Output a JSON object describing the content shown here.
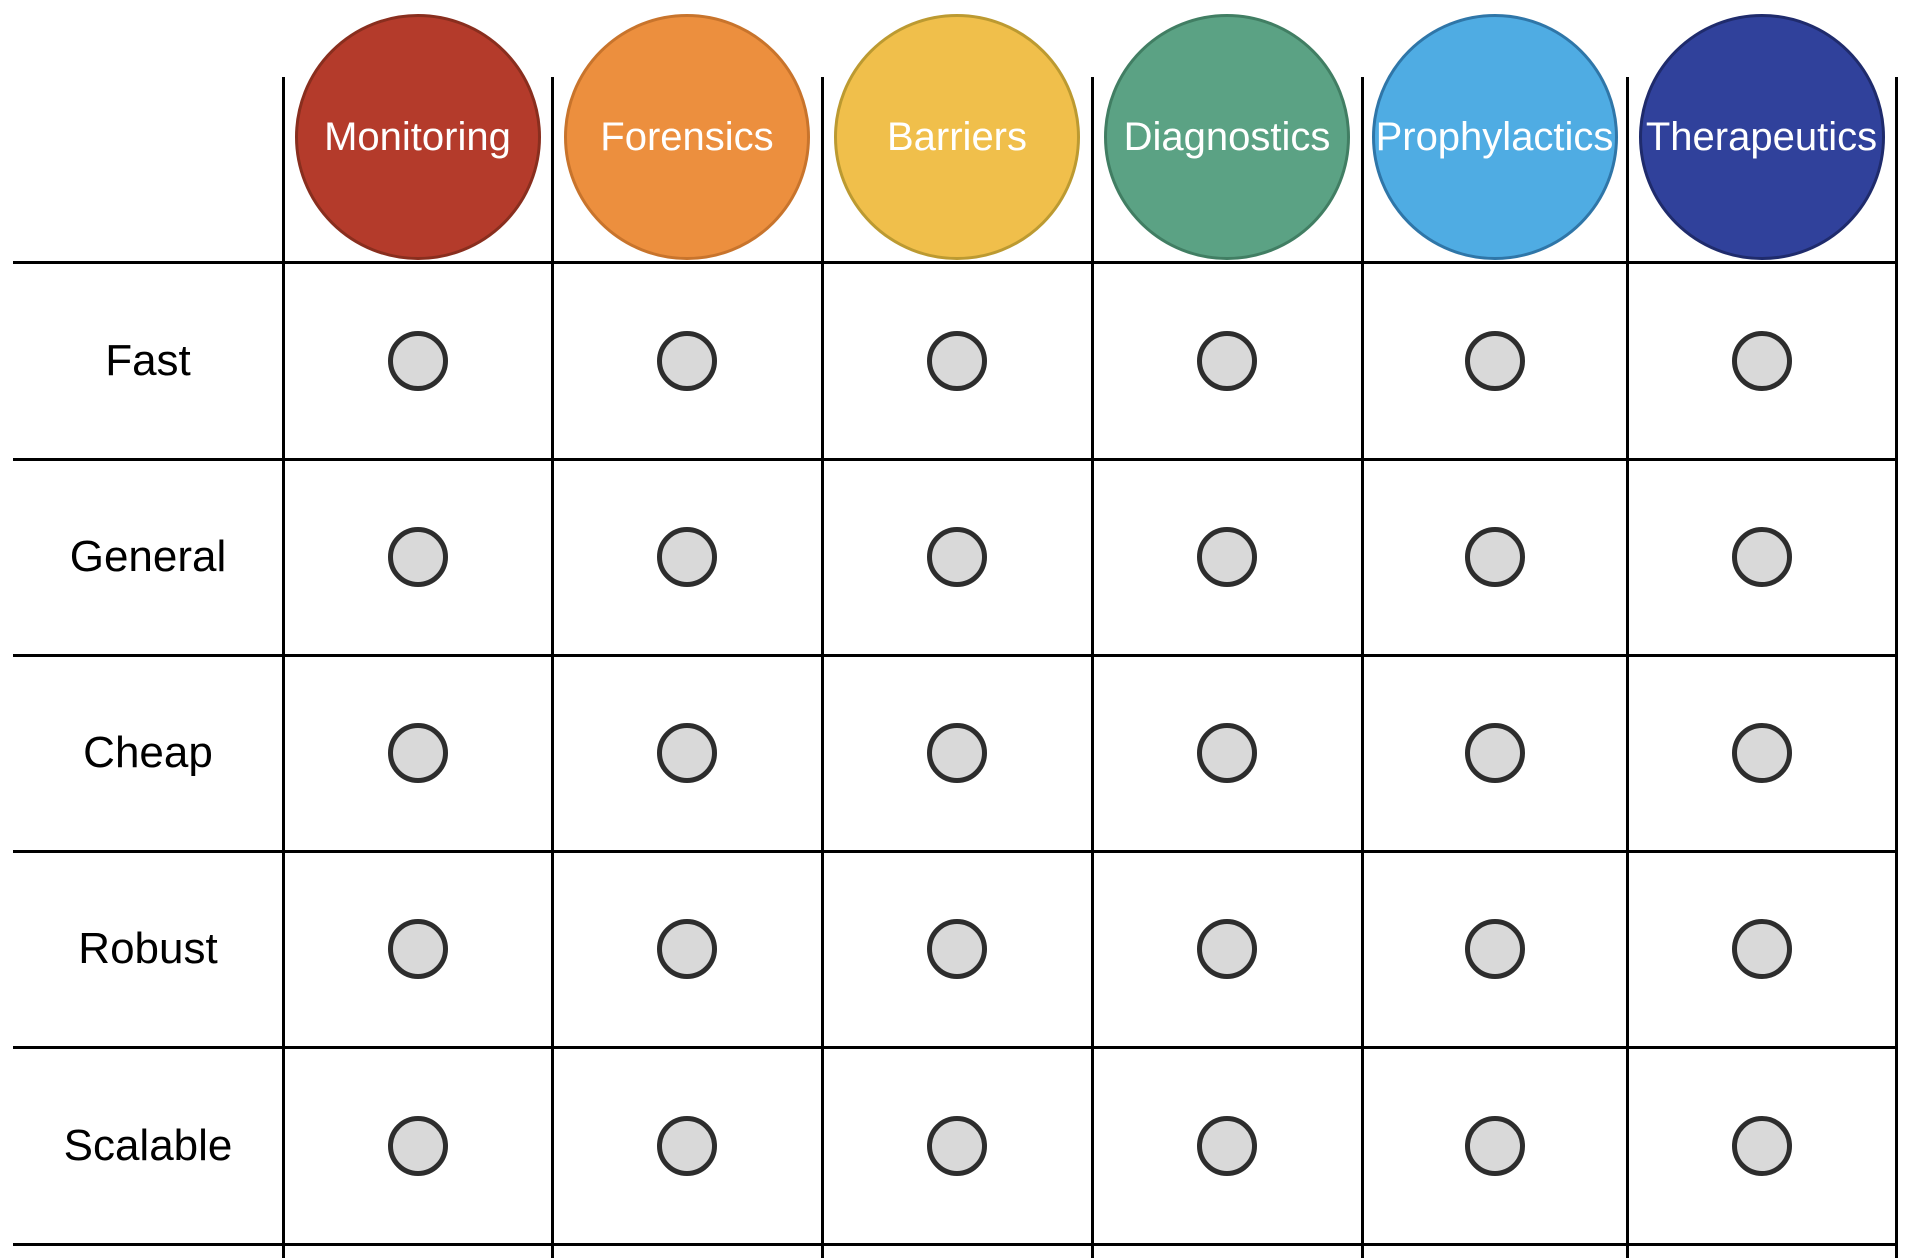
{
  "diagram": {
    "type": "matrix-table",
    "description_visible_text_only": true,
    "colors": {
      "background": "#FFFFFF",
      "grid_line": "#000000",
      "header_text": "#FFFFFF",
      "row_label_text": "#000000",
      "dot_fill": "#D9D9D9",
      "dot_border": "#2D2D2D"
    },
    "columns": [
      {
        "label": "Monitoring",
        "fill": "#B43B2B",
        "border": "#892E1E"
      },
      {
        "label": "Forensics",
        "fill": "#EC8F3E",
        "border": "#C8742C"
      },
      {
        "label": "Barriers",
        "fill": "#F0BF4B",
        "border": "#BC9A31"
      },
      {
        "label": "Diagnostics",
        "fill": "#5BA284",
        "border": "#417E63"
      },
      {
        "label": "Prophylactics",
        "fill": "#4FACE3",
        "border": "#2F76A8"
      },
      {
        "label": "Therapeutics",
        "fill": "#30419B",
        "border": "#1F2B6C"
      }
    ],
    "rows": [
      {
        "label": "Fast"
      },
      {
        "label": "General"
      },
      {
        "label": "Cheap"
      },
      {
        "label": "Robust"
      },
      {
        "label": "Scalable"
      }
    ],
    "cell_marker": {
      "icon": "empty-dot-icon",
      "shape": "circle",
      "fill": "#D9D9D9",
      "border": "#2D2D2D"
    },
    "cells": [
      [
        "dot",
        "dot",
        "dot",
        "dot",
        "dot",
        "dot"
      ],
      [
        "dot",
        "dot",
        "dot",
        "dot",
        "dot",
        "dot"
      ],
      [
        "dot",
        "dot",
        "dot",
        "dot",
        "dot",
        "dot"
      ],
      [
        "dot",
        "dot",
        "dot",
        "dot",
        "dot",
        "dot"
      ],
      [
        "dot",
        "dot",
        "dot",
        "dot",
        "dot",
        "dot"
      ]
    ]
  }
}
